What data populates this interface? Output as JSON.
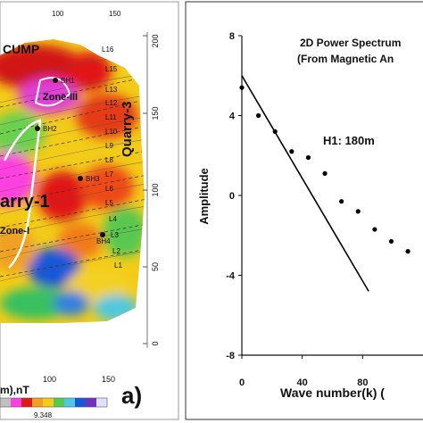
{
  "left_panel": {
    "panel_letter": "a)",
    "region_labels": {
      "top": "CUMP",
      "zone3": "Zone-III",
      "zone1": "Zone-I",
      "quarry1": "arry-1",
      "quarry3": "Quarry-3"
    },
    "borehole_labels": [
      "BH1",
      "BH2",
      "BH3",
      "BH4"
    ],
    "line_labels": [
      "L16",
      "L15",
      "L13",
      "L12",
      "L11",
      "L10",
      "L9",
      "L8",
      "L7",
      "L6",
      "L5",
      "L4",
      "L3",
      "L2",
      "L1"
    ],
    "right_axis_ticks": [
      "200",
      "150",
      "100",
      "50",
      "0"
    ],
    "bottom_axis_ticks": [
      "100",
      "150"
    ],
    "top_axis_ticks": [
      "100",
      "150"
    ],
    "bottom_caption": "m),nT",
    "colorbar_value": "9.348"
  },
  "chart_data": {
    "type": "scatter",
    "title": "2D Power Spectrum",
    "subtitle": "(From Magnetic An",
    "xlabel": "Wave number(k) (",
    "ylabel": "Amplitude",
    "xlim": [
      0,
      120
    ],
    "ylim": [
      -8,
      8
    ],
    "x_ticks": [
      "0",
      "40",
      "80"
    ],
    "y_ticks": [
      "8",
      "4",
      "0",
      "-4",
      "-8"
    ],
    "annotation": "H1: 180m",
    "series": [
      {
        "x": [
          0,
          11,
          22,
          33,
          44,
          55,
          66,
          77,
          88,
          99,
          110
        ],
        "y": [
          5.4,
          4.0,
          3.2,
          2.2,
          1.9,
          1.1,
          -0.3,
          -0.8,
          -1.7,
          -2.3,
          -2.8
        ]
      }
    ],
    "fit_line": {
      "x": [
        0,
        84
      ],
      "y": [
        6.0,
        -4.8
      ]
    },
    "colors": {
      "points": "#000000",
      "line": "#000000"
    }
  }
}
